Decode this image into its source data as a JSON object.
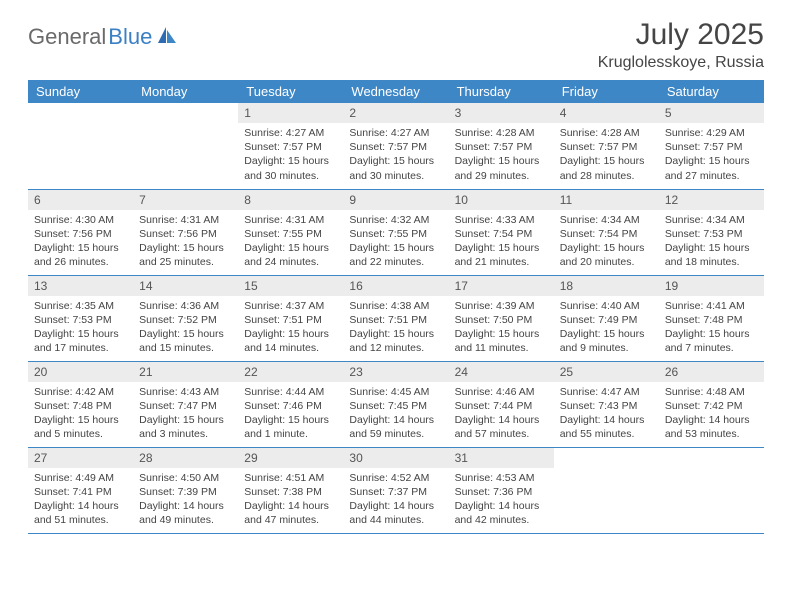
{
  "logo": {
    "text1": "General",
    "text2": "Blue"
  },
  "title": "July 2025",
  "location": "Kruglolesskoye, Russia",
  "headers": [
    "Sunday",
    "Monday",
    "Tuesday",
    "Wednesday",
    "Thursday",
    "Friday",
    "Saturday"
  ],
  "header_bg": "#3d87c7",
  "header_fg": "#ffffff",
  "daynum_bg": "#ececec",
  "cell_border": "#3d87c7",
  "weeks": [
    [
      null,
      null,
      {
        "n": "1",
        "sr": "4:27 AM",
        "ss": "7:57 PM",
        "dl": "15 hours and 30 minutes."
      },
      {
        "n": "2",
        "sr": "4:27 AM",
        "ss": "7:57 PM",
        "dl": "15 hours and 30 minutes."
      },
      {
        "n": "3",
        "sr": "4:28 AM",
        "ss": "7:57 PM",
        "dl": "15 hours and 29 minutes."
      },
      {
        "n": "4",
        "sr": "4:28 AM",
        "ss": "7:57 PM",
        "dl": "15 hours and 28 minutes."
      },
      {
        "n": "5",
        "sr": "4:29 AM",
        "ss": "7:57 PM",
        "dl": "15 hours and 27 minutes."
      }
    ],
    [
      {
        "n": "6",
        "sr": "4:30 AM",
        "ss": "7:56 PM",
        "dl": "15 hours and 26 minutes."
      },
      {
        "n": "7",
        "sr": "4:31 AM",
        "ss": "7:56 PM",
        "dl": "15 hours and 25 minutes."
      },
      {
        "n": "8",
        "sr": "4:31 AM",
        "ss": "7:55 PM",
        "dl": "15 hours and 24 minutes."
      },
      {
        "n": "9",
        "sr": "4:32 AM",
        "ss": "7:55 PM",
        "dl": "15 hours and 22 minutes."
      },
      {
        "n": "10",
        "sr": "4:33 AM",
        "ss": "7:54 PM",
        "dl": "15 hours and 21 minutes."
      },
      {
        "n": "11",
        "sr": "4:34 AM",
        "ss": "7:54 PM",
        "dl": "15 hours and 20 minutes."
      },
      {
        "n": "12",
        "sr": "4:34 AM",
        "ss": "7:53 PM",
        "dl": "15 hours and 18 minutes."
      }
    ],
    [
      {
        "n": "13",
        "sr": "4:35 AM",
        "ss": "7:53 PM",
        "dl": "15 hours and 17 minutes."
      },
      {
        "n": "14",
        "sr": "4:36 AM",
        "ss": "7:52 PM",
        "dl": "15 hours and 15 minutes."
      },
      {
        "n": "15",
        "sr": "4:37 AM",
        "ss": "7:51 PM",
        "dl": "15 hours and 14 minutes."
      },
      {
        "n": "16",
        "sr": "4:38 AM",
        "ss": "7:51 PM",
        "dl": "15 hours and 12 minutes."
      },
      {
        "n": "17",
        "sr": "4:39 AM",
        "ss": "7:50 PM",
        "dl": "15 hours and 11 minutes."
      },
      {
        "n": "18",
        "sr": "4:40 AM",
        "ss": "7:49 PM",
        "dl": "15 hours and 9 minutes."
      },
      {
        "n": "19",
        "sr": "4:41 AM",
        "ss": "7:48 PM",
        "dl": "15 hours and 7 minutes."
      }
    ],
    [
      {
        "n": "20",
        "sr": "4:42 AM",
        "ss": "7:48 PM",
        "dl": "15 hours and 5 minutes."
      },
      {
        "n": "21",
        "sr": "4:43 AM",
        "ss": "7:47 PM",
        "dl": "15 hours and 3 minutes."
      },
      {
        "n": "22",
        "sr": "4:44 AM",
        "ss": "7:46 PM",
        "dl": "15 hours and 1 minute."
      },
      {
        "n": "23",
        "sr": "4:45 AM",
        "ss": "7:45 PM",
        "dl": "14 hours and 59 minutes."
      },
      {
        "n": "24",
        "sr": "4:46 AM",
        "ss": "7:44 PM",
        "dl": "14 hours and 57 minutes."
      },
      {
        "n": "25",
        "sr": "4:47 AM",
        "ss": "7:43 PM",
        "dl": "14 hours and 55 minutes."
      },
      {
        "n": "26",
        "sr": "4:48 AM",
        "ss": "7:42 PM",
        "dl": "14 hours and 53 minutes."
      }
    ],
    [
      {
        "n": "27",
        "sr": "4:49 AM",
        "ss": "7:41 PM",
        "dl": "14 hours and 51 minutes."
      },
      {
        "n": "28",
        "sr": "4:50 AM",
        "ss": "7:39 PM",
        "dl": "14 hours and 49 minutes."
      },
      {
        "n": "29",
        "sr": "4:51 AM",
        "ss": "7:38 PM",
        "dl": "14 hours and 47 minutes."
      },
      {
        "n": "30",
        "sr": "4:52 AM",
        "ss": "7:37 PM",
        "dl": "14 hours and 44 minutes."
      },
      {
        "n": "31",
        "sr": "4:53 AM",
        "ss": "7:36 PM",
        "dl": "14 hours and 42 minutes."
      },
      null,
      null
    ]
  ],
  "labels": {
    "sunrise": "Sunrise: ",
    "sunset": "Sunset: ",
    "daylight": "Daylight: "
  }
}
